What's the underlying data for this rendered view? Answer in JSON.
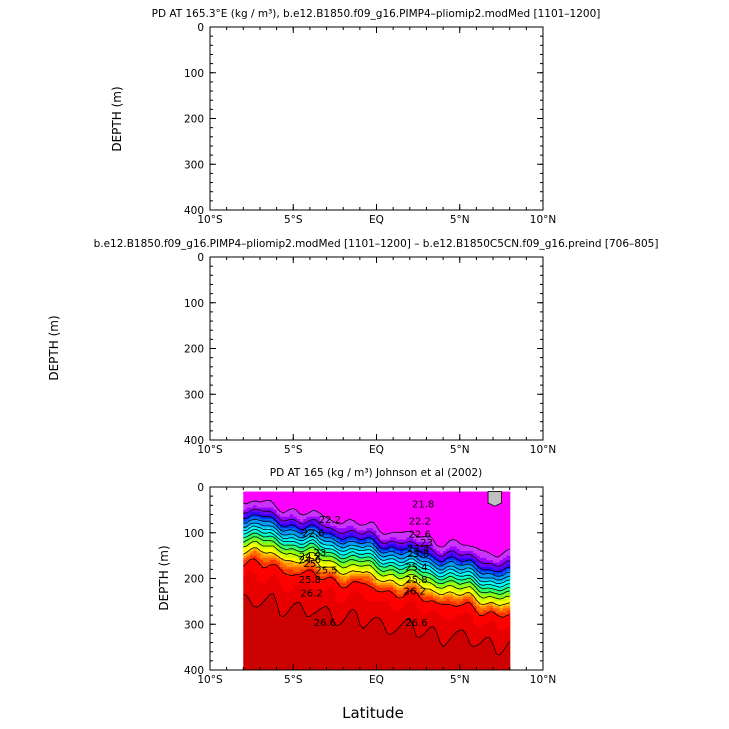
{
  "xlabel": "Latitude",
  "chart_data": [
    {
      "type": "heatmap",
      "title": "PD AT 165.3°E (kg / m³), b.e12.B1850.f09_g16.PIMP4–pliomip2.modMed [1101–1200]",
      "ylabel": "DEPTH (m)",
      "x_ticks": [
        "10°S",
        "5°S",
        "EQ",
        "5°N",
        "10°N"
      ],
      "y_ticks": [
        "0",
        "100",
        "200",
        "300",
        "400"
      ],
      "xlim": [
        -10,
        10
      ],
      "ylim": [
        400,
        0
      ],
      "has_data": false
    },
    {
      "type": "heatmap",
      "title": "b.e12.B1850.f09_g16.PIMP4–pliomip2.modMed [1101–1200] – b.e12.B1850C5CN.f09_g16.preind [706–805]",
      "ylabel": "DEPTH (m)",
      "x_ticks": [
        "10°S",
        "5°S",
        "EQ",
        "5°N",
        "10°N"
      ],
      "y_ticks": [
        "0",
        "100",
        "200",
        "300",
        "400"
      ],
      "xlim": [
        -10,
        10
      ],
      "ylim": [
        400,
        0
      ],
      "has_data": false
    },
    {
      "type": "heatmap",
      "title": "PD AT 165 (kg / m³) Johnson et al (2002)",
      "ylabel": "DEPTH (m)",
      "xlabel": "Latitude",
      "x_ticks": [
        "10°S",
        "5°S",
        "EQ",
        "5°N",
        "10°N"
      ],
      "y_ticks": [
        "0",
        "100",
        "200",
        "300",
        "400"
      ],
      "xlim": [
        -10,
        10
      ],
      "ylim": [
        400,
        0
      ],
      "data_lat_range": [
        -8,
        8
      ],
      "data_depth_range": [
        10,
        400
      ],
      "has_data": true,
      "contour_labels": [
        {
          "text": "21.8",
          "lat": 2.8,
          "depth": 38
        },
        {
          "text": "22.2",
          "lat": -2.8,
          "depth": 72
        },
        {
          "text": "22.2",
          "lat": 2.6,
          "depth": 75
        },
        {
          "text": "22.6",
          "lat": -3.8,
          "depth": 102
        },
        {
          "text": "22.6",
          "lat": 2.6,
          "depth": 104
        },
        {
          "text": "23",
          "lat": 3.0,
          "depth": 122
        },
        {
          "text": "23",
          "lat": -3.4,
          "depth": 144
        },
        {
          "text": "23.4",
          "lat": 2.5,
          "depth": 135
        },
        {
          "text": "23.8",
          "lat": 2.5,
          "depth": 146
        },
        {
          "text": "24.2",
          "lat": -4.0,
          "depth": 152
        },
        {
          "text": "24.6",
          "lat": -4.0,
          "depth": 160
        },
        {
          "text": "25",
          "lat": -4.0,
          "depth": 168
        },
        {
          "text": "25.4",
          "lat": 2.4,
          "depth": 176
        },
        {
          "text": "25.5",
          "lat": -3.0,
          "depth": 182
        },
        {
          "text": "25.8",
          "lat": -4.0,
          "depth": 203
        },
        {
          "text": "25.8",
          "lat": 2.4,
          "depth": 203
        },
        {
          "text": "26.2",
          "lat": -3.9,
          "depth": 233
        },
        {
          "text": "26.2",
          "lat": 2.3,
          "depth": 228
        },
        {
          "text": "26.6",
          "lat": -3.1,
          "depth": 297
        },
        {
          "text": "26.6",
          "lat": 2.4,
          "depth": 297
        }
      ]
    }
  ]
}
